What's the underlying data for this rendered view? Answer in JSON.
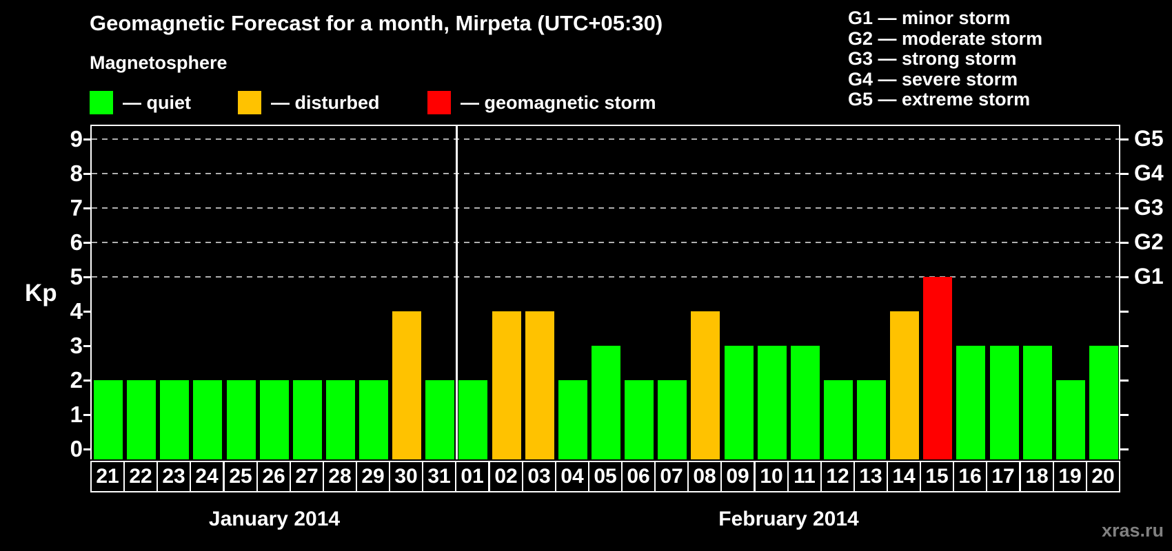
{
  "header": {
    "title": "Geomagnetic Forecast for a month, Mirpeta (UTC+05:30)",
    "subtitle": "Magnetosphere"
  },
  "legend": {
    "items": [
      {
        "name": "quiet",
        "label": "— quiet",
        "color": "#00ff00"
      },
      {
        "name": "disturbed",
        "label": "— disturbed",
        "color": "#ffc200"
      },
      {
        "name": "storm",
        "label": "— geomagnetic storm",
        "color": "#ff0000"
      }
    ]
  },
  "storm_scale_legend": {
    "items": [
      "G1 — minor storm",
      "G2 — moderate storm",
      "G3 — strong storm",
      "G4 — severe storm",
      "G5 — extreme storm"
    ]
  },
  "watermark": "xras.ru",
  "chart_data": {
    "type": "bar",
    "title": "Geomagnetic Forecast for a month, Mirpeta (UTC+05:30)",
    "ylabel": "Kp",
    "ylim": [
      0,
      9
    ],
    "yticks": [
      0,
      1,
      2,
      3,
      4,
      5,
      6,
      7,
      8,
      9
    ],
    "gridlines_at_kp": [
      5,
      6,
      7,
      8,
      9
    ],
    "grid": "dashed horizontal at storm levels only",
    "legend_position": "top",
    "right_axis": [
      {
        "label": "G1",
        "kp": 5
      },
      {
        "label": "G2",
        "kp": 6
      },
      {
        "label": "G3",
        "kp": 7
      },
      {
        "label": "G4",
        "kp": 8
      },
      {
        "label": "G5",
        "kp": 9
      }
    ],
    "months": [
      {
        "label": "January 2014",
        "count": 11
      },
      {
        "label": "February 2014",
        "count": 20
      }
    ],
    "categories": [
      "21",
      "22",
      "23",
      "24",
      "25",
      "26",
      "27",
      "28",
      "29",
      "30",
      "31",
      "01",
      "02",
      "03",
      "04",
      "05",
      "06",
      "07",
      "08",
      "09",
      "10",
      "11",
      "12",
      "13",
      "14",
      "15",
      "16",
      "17",
      "18",
      "19",
      "20"
    ],
    "values": [
      2,
      2,
      2,
      2,
      2,
      2,
      2,
      2,
      2,
      4,
      2,
      2,
      4,
      4,
      2,
      3,
      2,
      2,
      4,
      3,
      3,
      3,
      2,
      2,
      4,
      5,
      3,
      3,
      3,
      2,
      3
    ],
    "states": [
      "quiet",
      "quiet",
      "quiet",
      "quiet",
      "quiet",
      "quiet",
      "quiet",
      "quiet",
      "quiet",
      "disturbed",
      "quiet",
      "quiet",
      "disturbed",
      "disturbed",
      "quiet",
      "quiet",
      "quiet",
      "quiet",
      "disturbed",
      "quiet",
      "quiet",
      "quiet",
      "quiet",
      "quiet",
      "disturbed",
      "storm",
      "quiet",
      "quiet",
      "quiet",
      "quiet",
      "quiet"
    ],
    "colors": {
      "quiet": "#00ff00",
      "disturbed": "#ffc200",
      "storm": "#ff0000"
    }
  }
}
